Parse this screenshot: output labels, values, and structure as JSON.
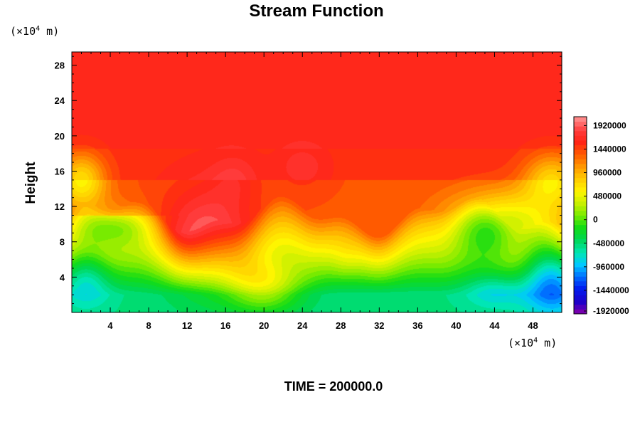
{
  "chart_data": {
    "type": "heatmap",
    "title": "Stream Function",
    "ylabel": "Height",
    "xlabel": "",
    "y_unit": "(×10⁴ m)",
    "x_unit": "(×10⁴ m)",
    "x_unit_prefix": "(×10",
    "x_unit_exp": "4",
    "x_unit_suffix": " m)",
    "y_unit_prefix": "(×10",
    "y_unit_exp": "4",
    "y_unit_suffix": " m)",
    "xlim": [
      0,
      51
    ],
    "ylim": [
      0,
      29.5
    ],
    "x_ticks": [
      "4",
      "8",
      "12",
      "16",
      "20",
      "24",
      "28",
      "32",
      "36",
      "40",
      "44",
      "48"
    ],
    "y_ticks": [
      "4",
      "8",
      "12",
      "16",
      "20",
      "24",
      "28"
    ],
    "colorbar": {
      "min": -1920000,
      "max": 2100000,
      "ticks": [
        "1920000",
        "1440000",
        "960000",
        "480000",
        "0",
        "-480000",
        "-960000",
        "-1440000",
        "-1920000"
      ]
    },
    "footer": "TIME = 200000.0",
    "colors": {
      "plateau": "#ff3535",
      "above_range": "#ffffff",
      "axis": "#000000"
    }
  }
}
